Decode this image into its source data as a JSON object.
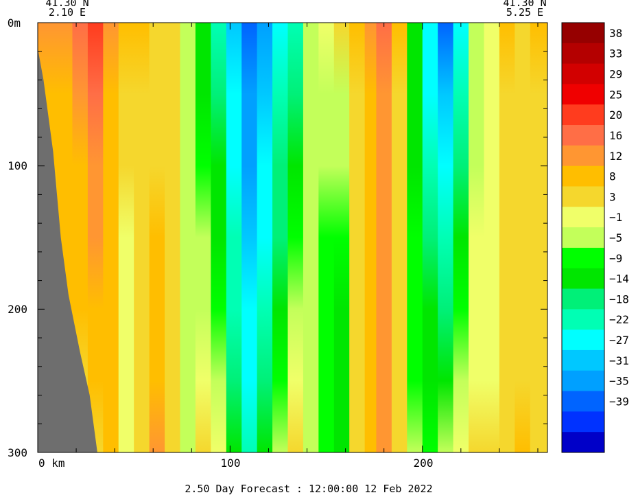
{
  "chart_data": {
    "type": "heatmap",
    "corner_left": {
      "lat": "41.30 N",
      "lon": "2.10 E"
    },
    "corner_right": {
      "lat": "41.30 N",
      "lon": "5.25 E"
    },
    "y_axis": {
      "ticks": [
        "0m",
        "100",
        "200",
        "300"
      ],
      "values": [
        0,
        100,
        200,
        300
      ],
      "range": [
        0,
        300
      ]
    },
    "x_axis": {
      "ticks": [
        "0 km",
        "100",
        "200"
      ],
      "values": [
        0,
        100,
        200
      ],
      "range": [
        0,
        265
      ]
    },
    "footer": "2.50 Day Forecast : 12:00:00  12 Feb 2022",
    "colorbar": {
      "labels": [
        "38",
        "33",
        "29",
        "25",
        "20",
        "16",
        "12",
        "8",
        "3",
        "-1",
        "-5",
        "-9",
        "-14",
        "-18",
        "-22",
        "-27",
        "-31",
        "-35",
        "-39"
      ],
      "colors": [
        "#960000",
        "#b40000",
        "#d20000",
        "#f00000",
        "#ff3c1e",
        "#ff6e46",
        "#ff9632",
        "#ffbe00",
        "#f5d72d",
        "#f0ff69",
        "#c3ff5a",
        "#00ff00",
        "#00e600",
        "#00f078",
        "#00ffb4",
        "#00ffff",
        "#00c8ff",
        "#00a0ff",
        "#0064ff",
        "#0032ff",
        "#0000c8"
      ]
    },
    "bands": [
      {
        "x": 0,
        "top": 12,
        "bottom": 5
      },
      {
        "x": 10,
        "top": 12,
        "bottom": 7
      },
      {
        "x": 18,
        "top": 16,
        "bottom": 6
      },
      {
        "x": 26,
        "top": 20,
        "bottom": 7
      },
      {
        "x": 34,
        "top": 12,
        "bottom": 8
      },
      {
        "x": 42,
        "top": 8,
        "bottom": -1
      },
      {
        "x": 50,
        "top": 8,
        "bottom": 3
      },
      {
        "x": 58,
        "top": 3,
        "bottom": 12
      },
      {
        "x": 66,
        "top": 3,
        "bottom": 3
      },
      {
        "x": 74,
        "top": -5,
        "bottom": -5
      },
      {
        "x": 82,
        "top": -14,
        "bottom": 3
      },
      {
        "x": 90,
        "top": -22,
        "bottom": -1
      },
      {
        "x": 98,
        "top": -31,
        "bottom": -14
      },
      {
        "x": 106,
        "top": -39,
        "bottom": -22
      },
      {
        "x": 114,
        "top": -35,
        "bottom": -14
      },
      {
        "x": 122,
        "top": -27,
        "bottom": -5
      },
      {
        "x": 130,
        "top": -22,
        "bottom": 3
      },
      {
        "x": 138,
        "top": -5,
        "bottom": -5
      },
      {
        "x": 146,
        "top": -1,
        "bottom": -9
      },
      {
        "x": 154,
        "top": 3,
        "bottom": -14
      },
      {
        "x": 162,
        "top": 8,
        "bottom": 3
      },
      {
        "x": 170,
        "top": 12,
        "bottom": 8
      },
      {
        "x": 176,
        "top": 16,
        "bottom": 12
      },
      {
        "x": 184,
        "top": 8,
        "bottom": 3
      },
      {
        "x": 192,
        "top": -14,
        "bottom": -5
      },
      {
        "x": 200,
        "top": -27,
        "bottom": -9
      },
      {
        "x": 208,
        "top": -39,
        "bottom": -5
      },
      {
        "x": 216,
        "top": -27,
        "bottom": -1
      },
      {
        "x": 224,
        "top": -5,
        "bottom": 3
      },
      {
        "x": 232,
        "top": -1,
        "bottom": 3
      },
      {
        "x": 240,
        "top": 8,
        "bottom": 3
      },
      {
        "x": 248,
        "top": 3,
        "bottom": 8
      },
      {
        "x": 256,
        "top": 8,
        "bottom": 3
      },
      {
        "x": 265,
        "top": 12,
        "bottom": 8
      }
    ],
    "bathymetry": [
      {
        "x": 0,
        "depth": 18
      },
      {
        "x": 3,
        "depth": 40
      },
      {
        "x": 8,
        "depth": 90
      },
      {
        "x": 12,
        "depth": 150
      },
      {
        "x": 16,
        "depth": 190
      },
      {
        "x": 22,
        "depth": 230
      },
      {
        "x": 27,
        "depth": 260
      },
      {
        "x": 30,
        "depth": 290
      },
      {
        "x": 31,
        "depth": 300
      }
    ]
  }
}
